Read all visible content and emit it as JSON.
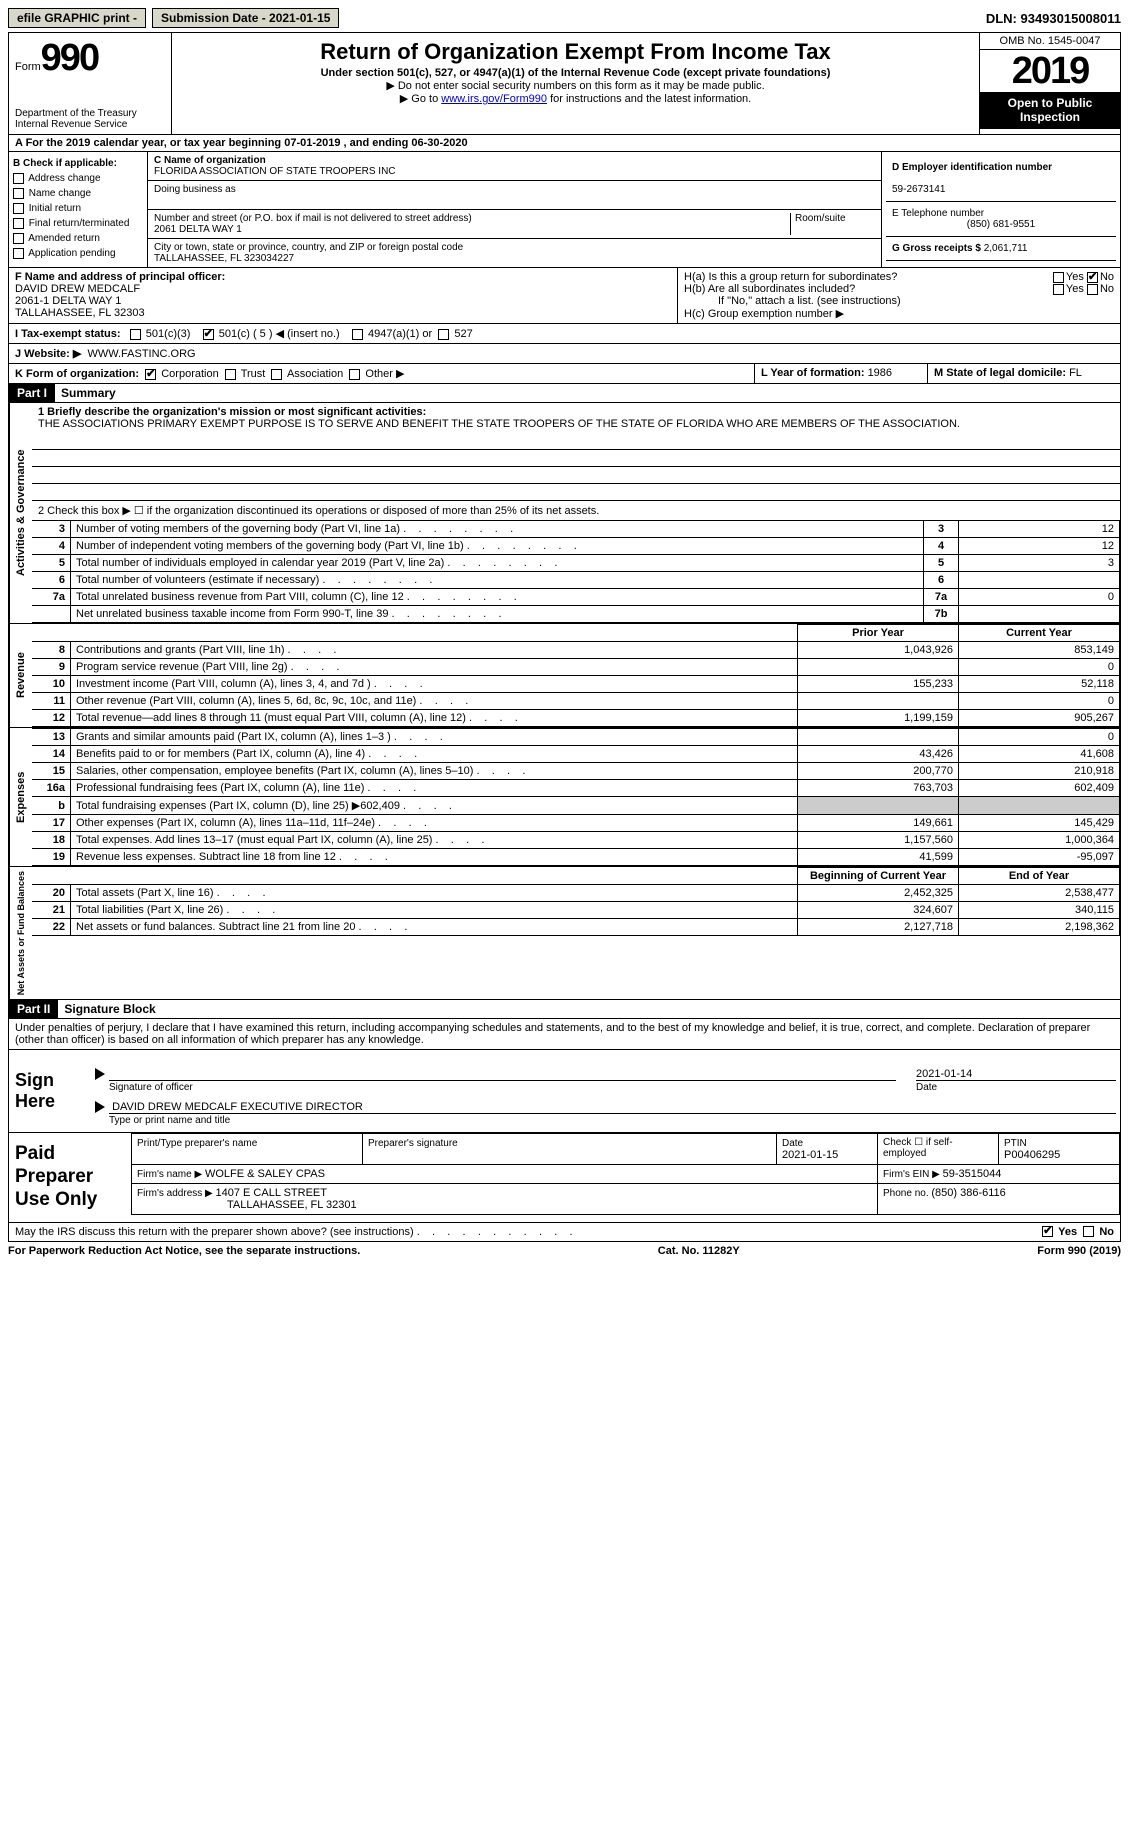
{
  "topbar": {
    "efile": "efile GRAPHIC print -",
    "submission": "Submission Date - 2021-01-15",
    "dln": "DLN: 93493015008011"
  },
  "header": {
    "form_word": "Form",
    "form_number": "990",
    "dept": "Department of the Treasury\nInternal Revenue Service",
    "title": "Return of Organization Exempt From Income Tax",
    "subtitle": "Under section 501(c), 527, or 4947(a)(1) of the Internal Revenue Code (except private foundations)",
    "inst1": "▶ Do not enter social security numbers on this form as it may be made public.",
    "inst2_pre": "▶ Go to ",
    "inst2_link": "www.irs.gov/Form990",
    "inst2_post": " for instructions and the latest information.",
    "omb": "OMB No. 1545-0047",
    "year": "2019",
    "inspect": "Open to Public Inspection"
  },
  "period": {
    "label_a": "A For the 2019 calendar year, or tax year beginning ",
    "begin": "07-01-2019",
    "mid": "  , and ending ",
    "end": "06-30-2020"
  },
  "box_b": {
    "label": "B Check if applicable:",
    "items": [
      "Address change",
      "Name change",
      "Initial return",
      "Final return/terminated",
      "Amended return",
      "Application pending"
    ]
  },
  "box_c": {
    "name_label": "C Name of organization",
    "name": "FLORIDA ASSOCIATION OF STATE TROOPERS INC",
    "dba_label": "Doing business as",
    "street_label": "Number and street (or P.O. box if mail is not delivered to street address)",
    "room_label": "Room/suite",
    "street": "2061 DELTA WAY 1",
    "city_label": "City or town, state or province, country, and ZIP or foreign postal code",
    "city": "TALLAHASSEE, FL  323034227"
  },
  "box_d": {
    "ein_label": "D Employer identification number",
    "ein": "59-2673141",
    "phone_label": "E Telephone number",
    "phone": "(850) 681-9551",
    "gross_label": "G Gross receipts $ ",
    "gross": "2,061,711"
  },
  "box_f": {
    "label": "F Name and address of principal officer:",
    "name": "DAVID DREW MEDCALF",
    "addr1": "2061-1 DELTA WAY 1",
    "addr2": "TALLAHASSEE, FL  32303"
  },
  "box_h": {
    "ha": "H(a)  Is this a group return for subordinates?",
    "hb": "H(b)  Are all subordinates included?",
    "hb_note": "If \"No,\" attach a list. (see instructions)",
    "hc": "H(c)  Group exemption number ▶",
    "yes": "Yes",
    "no": "No"
  },
  "row_i": {
    "label": "I   Tax-exempt status:",
    "o1": "501(c)(3)",
    "o2": "501(c) ( 5 ) ",
    "o2_note": "◀ (insert no.)",
    "o3": "4947(a)(1) or",
    "o4": "527"
  },
  "row_j": {
    "label": "J   Website: ▶",
    "value": "WWW.FASTINC.ORG"
  },
  "row_k": {
    "label": "K Form of organization:",
    "o1": "Corporation",
    "o2": "Trust",
    "o3": "Association",
    "o4": "Other ▶",
    "l_label": "L Year of formation: ",
    "l_val": "1986",
    "m_label": "M State of legal domicile: ",
    "m_val": "FL"
  },
  "part1": {
    "tag": "Part I",
    "title": "Summary",
    "q1_label": "1   Briefly describe the organization's mission or most significant activities:",
    "q1_text": "THE ASSOCIATIONS PRIMARY EXEMPT PURPOSE IS TO SERVE AND BENEFIT THE STATE TROOPERS OF THE STATE OF FLORIDA WHO ARE MEMBERS OF THE ASSOCIATION.",
    "q2": "2   Check this box ▶ ☐  if the organization discontinued its operations or disposed of more than 25% of its net assets.",
    "governance_rows": [
      {
        "n": "3",
        "label": "Number of voting members of the governing body (Part VI, line 1a)",
        "box": "3",
        "val": "12"
      },
      {
        "n": "4",
        "label": "Number of independent voting members of the governing body (Part VI, line 1b)",
        "box": "4",
        "val": "12"
      },
      {
        "n": "5",
        "label": "Total number of individuals employed in calendar year 2019 (Part V, line 2a)",
        "box": "5",
        "val": "3"
      },
      {
        "n": "6",
        "label": "Total number of volunteers (estimate if necessary)",
        "box": "6",
        "val": ""
      },
      {
        "n": "7a",
        "label": "Total unrelated business revenue from Part VIII, column (C), line 12",
        "box": "7a",
        "val": "0"
      },
      {
        "n": "",
        "label": "Net unrelated business taxable income from Form 990-T, line 39",
        "box": "7b",
        "val": ""
      }
    ],
    "col_prior": "Prior Year",
    "col_current": "Current Year",
    "revenue_rows": [
      {
        "n": "8",
        "label": "Contributions and grants (Part VIII, line 1h)",
        "prior": "1,043,926",
        "curr": "853,149"
      },
      {
        "n": "9",
        "label": "Program service revenue (Part VIII, line 2g)",
        "prior": "",
        "curr": "0"
      },
      {
        "n": "10",
        "label": "Investment income (Part VIII, column (A), lines 3, 4, and 7d )",
        "prior": "155,233",
        "curr": "52,118"
      },
      {
        "n": "11",
        "label": "Other revenue (Part VIII, column (A), lines 5, 6d, 8c, 9c, 10c, and 11e)",
        "prior": "",
        "curr": "0"
      },
      {
        "n": "12",
        "label": "Total revenue—add lines 8 through 11 (must equal Part VIII, column (A), line 12)",
        "prior": "1,199,159",
        "curr": "905,267"
      }
    ],
    "expense_rows": [
      {
        "n": "13",
        "label": "Grants and similar amounts paid (Part IX, column (A), lines 1–3 )",
        "prior": "",
        "curr": "0"
      },
      {
        "n": "14",
        "label": "Benefits paid to or for members (Part IX, column (A), line 4)",
        "prior": "43,426",
        "curr": "41,608"
      },
      {
        "n": "15",
        "label": "Salaries, other compensation, employee benefits (Part IX, column (A), lines 5–10)",
        "prior": "200,770",
        "curr": "210,918"
      },
      {
        "n": "16a",
        "label": "Professional fundraising fees (Part IX, column (A), line 11e)",
        "prior": "763,703",
        "curr": "602,409"
      },
      {
        "n": "b",
        "label": "Total fundraising expenses (Part IX, column (D), line 25) ▶602,409",
        "prior": "shade",
        "curr": "shade"
      },
      {
        "n": "17",
        "label": "Other expenses (Part IX, column (A), lines 11a–11d, 11f–24e)",
        "prior": "149,661",
        "curr": "145,429"
      },
      {
        "n": "18",
        "label": "Total expenses. Add lines 13–17 (must equal Part IX, column (A), line 25)",
        "prior": "1,157,560",
        "curr": "1,000,364"
      },
      {
        "n": "19",
        "label": "Revenue less expenses. Subtract line 18 from line 12",
        "prior": "41,599",
        "curr": "-95,097"
      }
    ],
    "col_begin": "Beginning of Current Year",
    "col_end": "End of Year",
    "net_rows": [
      {
        "n": "20",
        "label": "Total assets (Part X, line 16)",
        "prior": "2,452,325",
        "curr": "2,538,477"
      },
      {
        "n": "21",
        "label": "Total liabilities (Part X, line 26)",
        "prior": "324,607",
        "curr": "340,115"
      },
      {
        "n": "22",
        "label": "Net assets or fund balances. Subtract line 21 from line 20",
        "prior": "2,127,718",
        "curr": "2,198,362"
      }
    ]
  },
  "part2": {
    "tag": "Part II",
    "title": "Signature Block",
    "penalty": "Under penalties of perjury, I declare that I have examined this return, including accompanying schedules and statements, and to the best of my knowledge and belief, it is true, correct, and complete. Declaration of preparer (other than officer) is based on all information of which preparer has any knowledge."
  },
  "sign": {
    "label": "Sign Here",
    "sig_officer": "Signature of officer",
    "date_label": "Date",
    "date_val": "2021-01-14",
    "name": "DAVID DREW MEDCALF  EXECUTIVE DIRECTOR",
    "name_label": "Type or print name and title"
  },
  "prep": {
    "label": "Paid Preparer Use Only",
    "h1": "Print/Type preparer's name",
    "h2": "Preparer's signature",
    "h3_label": "Date",
    "h3_val": "2021-01-15",
    "h4": "Check ☐ if self-employed",
    "h5_label": "PTIN",
    "h5_val": "P00406295",
    "firm_name_label": "Firm's name    ▶ ",
    "firm_name": "WOLFE & SALEY CPAS",
    "firm_ein_label": "Firm's EIN ▶ ",
    "firm_ein": "59-3515044",
    "firm_addr_label": "Firm's address ▶ ",
    "firm_addr1": "1407 E CALL STREET",
    "firm_addr2": "TALLAHASSEE, FL  32301",
    "phone_label": "Phone no. ",
    "phone": "(850) 386-6116"
  },
  "discuss": {
    "q": "May the IRS discuss this return with the preparer shown above? (see instructions)",
    "yes": "Yes",
    "no": "No"
  },
  "footer": {
    "left": "For Paperwork Reduction Act Notice, see the separate instructions.",
    "mid": "Cat. No. 11282Y",
    "right": "Form 990 (2019)"
  },
  "vtabs": {
    "gov": "Activities & Governance",
    "rev": "Revenue",
    "exp": "Expenses",
    "net": "Net Assets or Fund Balances"
  }
}
